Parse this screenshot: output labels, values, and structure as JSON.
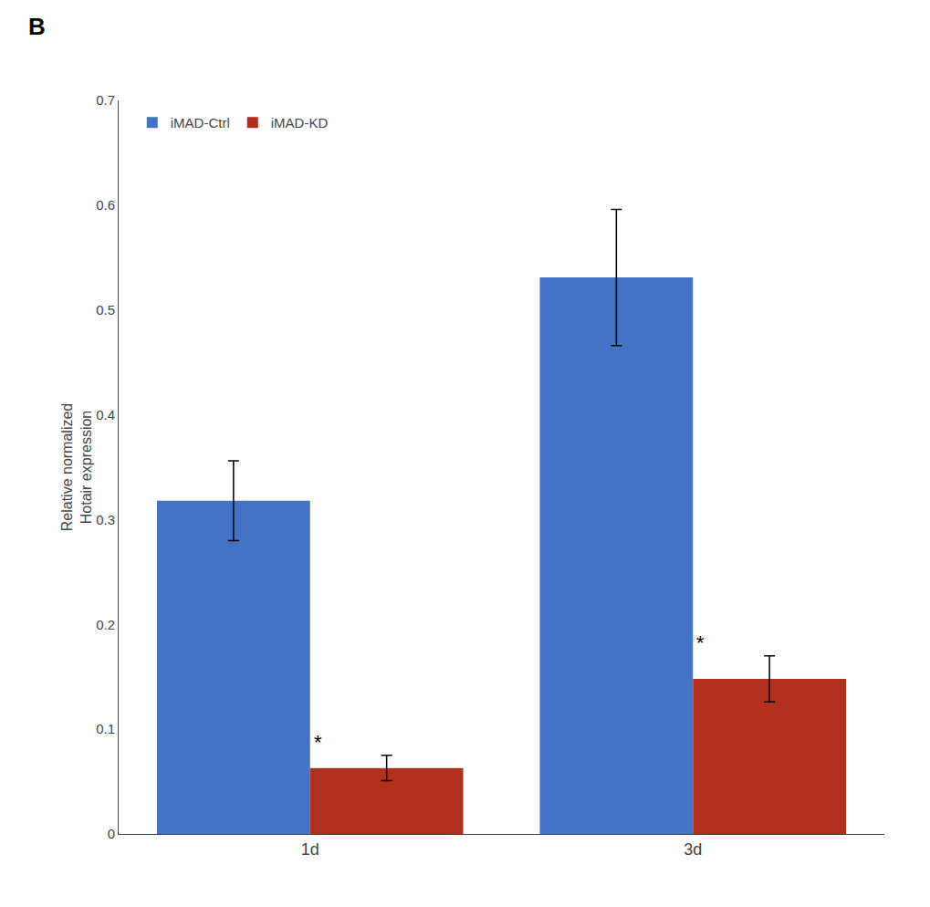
{
  "chart_data": {
    "type": "bar",
    "title": "B",
    "categories": [
      "1d",
      "3d"
    ],
    "series": [
      {
        "name": "iMAD-Ctrl",
        "color": "#4472C4",
        "values": [
          0.318,
          0.531
        ],
        "errors": [
          0.038,
          0.065
        ]
      },
      {
        "name": "iMAD-KD",
        "color": "#B03020",
        "values": [
          0.063,
          0.148
        ],
        "errors": [
          0.012,
          0.022
        ]
      }
    ],
    "ylabel": "Relative normalized\nHotair expression",
    "ylim": [
      0,
      0.7
    ],
    "yticks": [
      0,
      0.1,
      0.2,
      0.3,
      0.4,
      0.5,
      0.6,
      0.7
    ],
    "grid": false,
    "legend": "upper left",
    "annotations": [
      {
        "text": "*",
        "category": "1d",
        "series": "iMAD-KD"
      },
      {
        "text": "*",
        "category": "3d",
        "series": "iMAD-KD"
      }
    ]
  }
}
